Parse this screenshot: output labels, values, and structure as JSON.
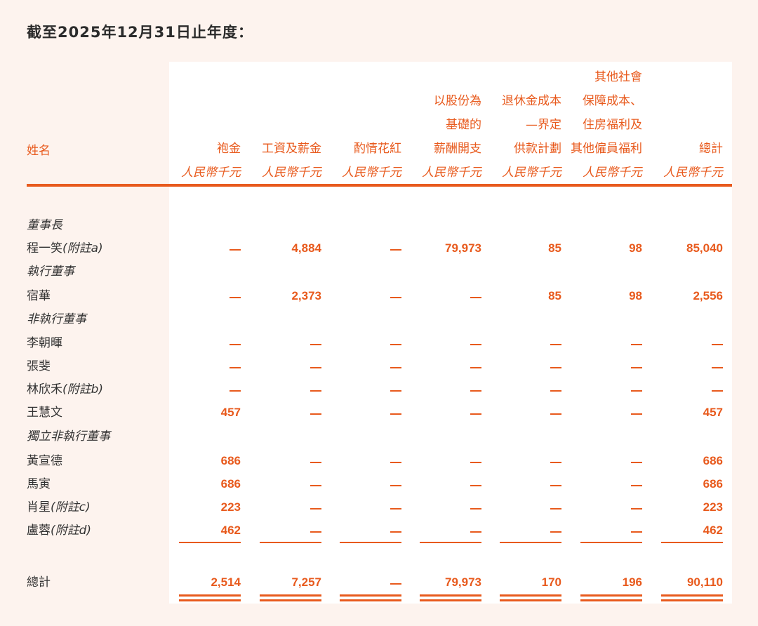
{
  "title": "截至2025年12月31日止年度：",
  "header": {
    "name_label": "姓名",
    "columns": [
      {
        "lines": [
          "袍金"
        ],
        "unit": "人民幣千元"
      },
      {
        "lines": [
          "工資及薪金"
        ],
        "unit": "人民幣千元"
      },
      {
        "lines": [
          "酌情花紅"
        ],
        "unit": "人民幣千元"
      },
      {
        "lines": [
          "以股份為",
          "基礎的",
          "薪酬開支"
        ],
        "unit": "人民幣千元"
      },
      {
        "lines": [
          "退休金成本",
          "—界定",
          "供款計劃"
        ],
        "unit": "人民幣千元"
      },
      {
        "lines": [
          "其他社會",
          "保障成本、",
          "住房福利及",
          "其他僱員福利"
        ],
        "unit": "人民幣千元"
      },
      {
        "lines": [
          "總計"
        ],
        "unit": "人民幣千元"
      }
    ]
  },
  "rows": [
    {
      "type": "section",
      "label": "董事長"
    },
    {
      "type": "data",
      "name": "程一笑",
      "note": "(附註a)",
      "values": [
        "—",
        "4,884",
        "—",
        "79,973",
        "85",
        "98",
        "85,040"
      ]
    },
    {
      "type": "section",
      "label": "執行董事"
    },
    {
      "type": "data",
      "name": "宿華",
      "note": "",
      "values": [
        "—",
        "2,373",
        "—",
        "—",
        "85",
        "98",
        "2,556"
      ]
    },
    {
      "type": "section",
      "label": "非執行董事"
    },
    {
      "type": "data",
      "name": "李朝暉",
      "note": "",
      "values": [
        "—",
        "—",
        "—",
        "—",
        "—",
        "—",
        "—"
      ]
    },
    {
      "type": "data",
      "name": "張斐",
      "note": "",
      "values": [
        "—",
        "—",
        "—",
        "—",
        "—",
        "—",
        "—"
      ]
    },
    {
      "type": "data",
      "name": "林欣禾",
      "note": "(附註b)",
      "values": [
        "—",
        "—",
        "—",
        "—",
        "—",
        "—",
        "—"
      ]
    },
    {
      "type": "data",
      "name": "王慧文",
      "note": "",
      "values": [
        "457",
        "—",
        "—",
        "—",
        "—",
        "—",
        "457"
      ]
    },
    {
      "type": "section",
      "label": "獨立非執行董事"
    },
    {
      "type": "data",
      "name": "黃宣德",
      "note": "",
      "values": [
        "686",
        "—",
        "—",
        "—",
        "—",
        "—",
        "686"
      ]
    },
    {
      "type": "data",
      "name": "馬寅",
      "note": "",
      "values": [
        "686",
        "—",
        "—",
        "—",
        "—",
        "—",
        "686"
      ]
    },
    {
      "type": "data",
      "name": "肖星",
      "note": "(附註c)",
      "values": [
        "223",
        "—",
        "—",
        "—",
        "—",
        "—",
        "223"
      ]
    },
    {
      "type": "data",
      "name": "盧蓉",
      "note": "(附註d)",
      "values": [
        "462",
        "—",
        "—",
        "—",
        "—",
        "—",
        "462"
      ]
    }
  ],
  "total": {
    "label": "總計",
    "values": [
      "2,514",
      "7,257",
      "—",
      "79,973",
      "170",
      "196",
      "90,110"
    ]
  }
}
